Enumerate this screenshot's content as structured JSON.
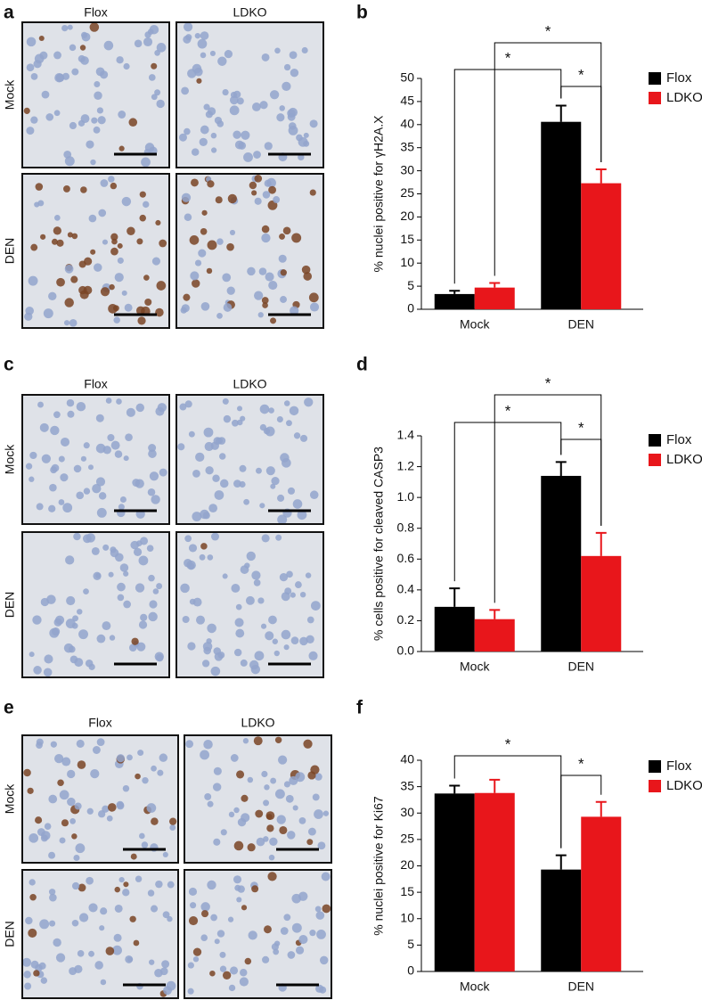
{
  "panels": [
    {
      "letter": "a",
      "columns": [
        "Flox",
        "LDKO"
      ],
      "rows": [
        "Mock",
        "DEN"
      ]
    },
    {
      "letter": "c",
      "columns": [
        "Flox",
        "LDKO"
      ],
      "rows": [
        "Mock",
        "DEN"
      ]
    },
    {
      "letter": "e",
      "columns": [
        "Flox",
        "LDKO"
      ],
      "rows": [
        "Mock",
        "DEN"
      ]
    }
  ],
  "chart_data": [
    {
      "type": "bar",
      "letter": "b",
      "y_label": "% nuclei positive for γH2A.X",
      "categories": [
        "Mock",
        "DEN"
      ],
      "series": [
        {
          "name": "Flox",
          "color": "#000000",
          "values": [
            3.3,
            40.6
          ],
          "errors": [
            0.7,
            3.5
          ]
        },
        {
          "name": "LDKO",
          "color": "#e8161b",
          "values": [
            4.7,
            27.3
          ],
          "errors": [
            1.0,
            3.0
          ]
        }
      ],
      "ylim": [
        0,
        50
      ],
      "yticks": [
        0,
        5,
        10,
        15,
        20,
        25,
        30,
        35,
        40,
        45,
        50
      ],
      "annotations": [
        "*",
        "*",
        "*"
      ],
      "legend": "top-right"
    },
    {
      "type": "bar",
      "letter": "d",
      "y_label": "% cells positive for cleaved CASP3",
      "categories": [
        "Mock",
        "DEN"
      ],
      "series": [
        {
          "name": "Flox",
          "color": "#000000",
          "values": [
            0.29,
            1.14
          ],
          "errors": [
            0.12,
            0.09
          ]
        },
        {
          "name": "LDKO",
          "color": "#e8161b",
          "values": [
            0.21,
            0.62
          ],
          "errors": [
            0.06,
            0.15
          ]
        }
      ],
      "ylim": [
        0,
        1.4
      ],
      "yticks": [
        {
          "value": 0,
          "label": "0.0"
        },
        0.2,
        0.4,
        0.6,
        0.8,
        {
          "value": 1,
          "label": "1.0"
        },
        1.2,
        1.4
      ],
      "annotations": [
        "*",
        "*",
        "*"
      ],
      "legend": "top-right"
    },
    {
      "type": "bar",
      "letter": "f",
      "y_label": "% nuclei positive for Ki67",
      "categories": [
        "Mock",
        "DEN"
      ],
      "series": [
        {
          "name": "Flox",
          "color": "#000000",
          "values": [
            33.7,
            19.3
          ],
          "errors": [
            1.5,
            2.7
          ]
        },
        {
          "name": "LDKO",
          "color": "#e8161b",
          "values": [
            33.8,
            29.3
          ],
          "errors": [
            2.5,
            2.8
          ]
        }
      ],
      "ylim": [
        0,
        40
      ],
      "yticks": [
        0,
        5,
        10,
        15,
        20,
        25,
        30,
        35,
        40
      ],
      "annotations": [
        "*",
        "*"
      ],
      "legend": "top-right"
    }
  ]
}
